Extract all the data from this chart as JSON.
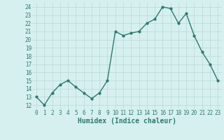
{
  "x": [
    0,
    1,
    2,
    3,
    4,
    5,
    6,
    7,
    8,
    9,
    10,
    11,
    12,
    13,
    14,
    15,
    16,
    17,
    18,
    19,
    20,
    21,
    22,
    23
  ],
  "y": [
    13.0,
    12.0,
    13.5,
    14.5,
    15.0,
    14.2,
    13.5,
    12.8,
    13.5,
    15.0,
    21.0,
    20.5,
    20.8,
    21.0,
    22.0,
    22.5,
    24.0,
    23.8,
    22.0,
    23.2,
    20.5,
    18.5,
    17.0,
    15.0
  ],
  "line_color": "#2d7a6e",
  "marker": "o",
  "marker_size": 2.0,
  "bg_color": "#d6f0ef",
  "grid_color": "#b8d8d5",
  "xlabel": "Humidex (Indice chaleur)",
  "xlim": [
    -0.5,
    23.5
  ],
  "ylim": [
    11.5,
    24.5
  ],
  "yticks": [
    12,
    13,
    14,
    15,
    16,
    17,
    18,
    19,
    20,
    21,
    22,
    23,
    24
  ],
  "xtick_labels": [
    "0",
    "1",
    "2",
    "3",
    "4",
    "5",
    "6",
    "7",
    "8",
    "9",
    "10",
    "11",
    "12",
    "13",
    "14",
    "15",
    "16",
    "17",
    "18",
    "19",
    "20",
    "21",
    "22",
    "23"
  ],
  "tick_color": "#2d7a6e",
  "tick_fontsize": 5.5,
  "xlabel_fontsize": 7.0,
  "line_width": 1.0
}
